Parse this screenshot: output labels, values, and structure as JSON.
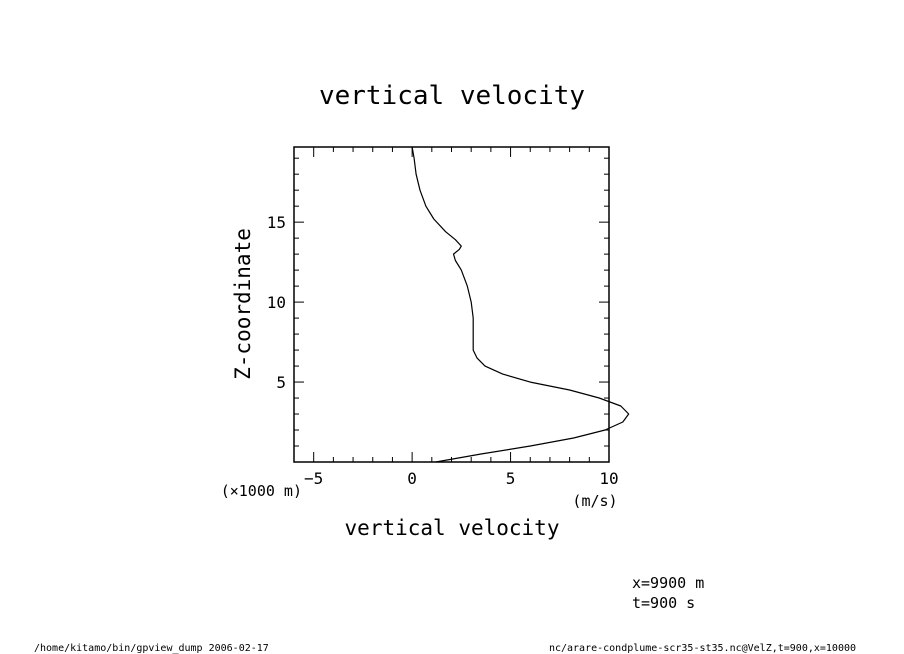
{
  "chart_data": {
    "type": "line",
    "title": "vertical velocity",
    "xlabel": "vertical velocity",
    "ylabel": "Z-coordinate",
    "x_unit": "(m/s)",
    "y_unit": "(×1000 m)",
    "xlim": [
      -6,
      10
    ],
    "ylim": [
      0,
      19.7
    ],
    "x_ticks": [
      -5,
      0,
      5,
      10
    ],
    "y_ticks": [
      5,
      10,
      15
    ],
    "grid": false,
    "series": [
      {
        "points": [
          [
            1.2,
            0.0
          ],
          [
            3.5,
            0.5
          ],
          [
            6.0,
            1.0
          ],
          [
            8.2,
            1.5
          ],
          [
            9.8,
            2.0
          ],
          [
            10.7,
            2.5
          ],
          [
            11.0,
            3.0
          ],
          [
            10.6,
            3.5
          ],
          [
            9.5,
            4.0
          ],
          [
            8.0,
            4.5
          ],
          [
            6.0,
            5.0
          ],
          [
            4.6,
            5.5
          ],
          [
            3.7,
            6.0
          ],
          [
            3.3,
            6.5
          ],
          [
            3.1,
            7.0
          ],
          [
            3.1,
            8.0
          ],
          [
            3.1,
            9.0
          ],
          [
            3.0,
            10.0
          ],
          [
            2.8,
            11.0
          ],
          [
            2.5,
            12.0
          ],
          [
            2.2,
            12.6
          ],
          [
            2.1,
            13.0
          ],
          [
            2.4,
            13.3
          ],
          [
            2.5,
            13.5
          ],
          [
            2.2,
            13.9
          ],
          [
            1.7,
            14.4
          ],
          [
            1.1,
            15.2
          ],
          [
            0.7,
            16.0
          ],
          [
            0.4,
            17.0
          ],
          [
            0.2,
            18.0
          ],
          [
            0.1,
            19.0
          ],
          [
            0.0,
            19.7
          ]
        ]
      }
    ]
  },
  "annotations": {
    "position": "x=9900 m",
    "time": "t=900 s"
  },
  "footer": {
    "left": "/home/kitamo/bin/gpview_dump  2006-02-17",
    "right": "nc/arare-condplume-scr35-st35.nc@VelZ,t=900,x=10000"
  }
}
